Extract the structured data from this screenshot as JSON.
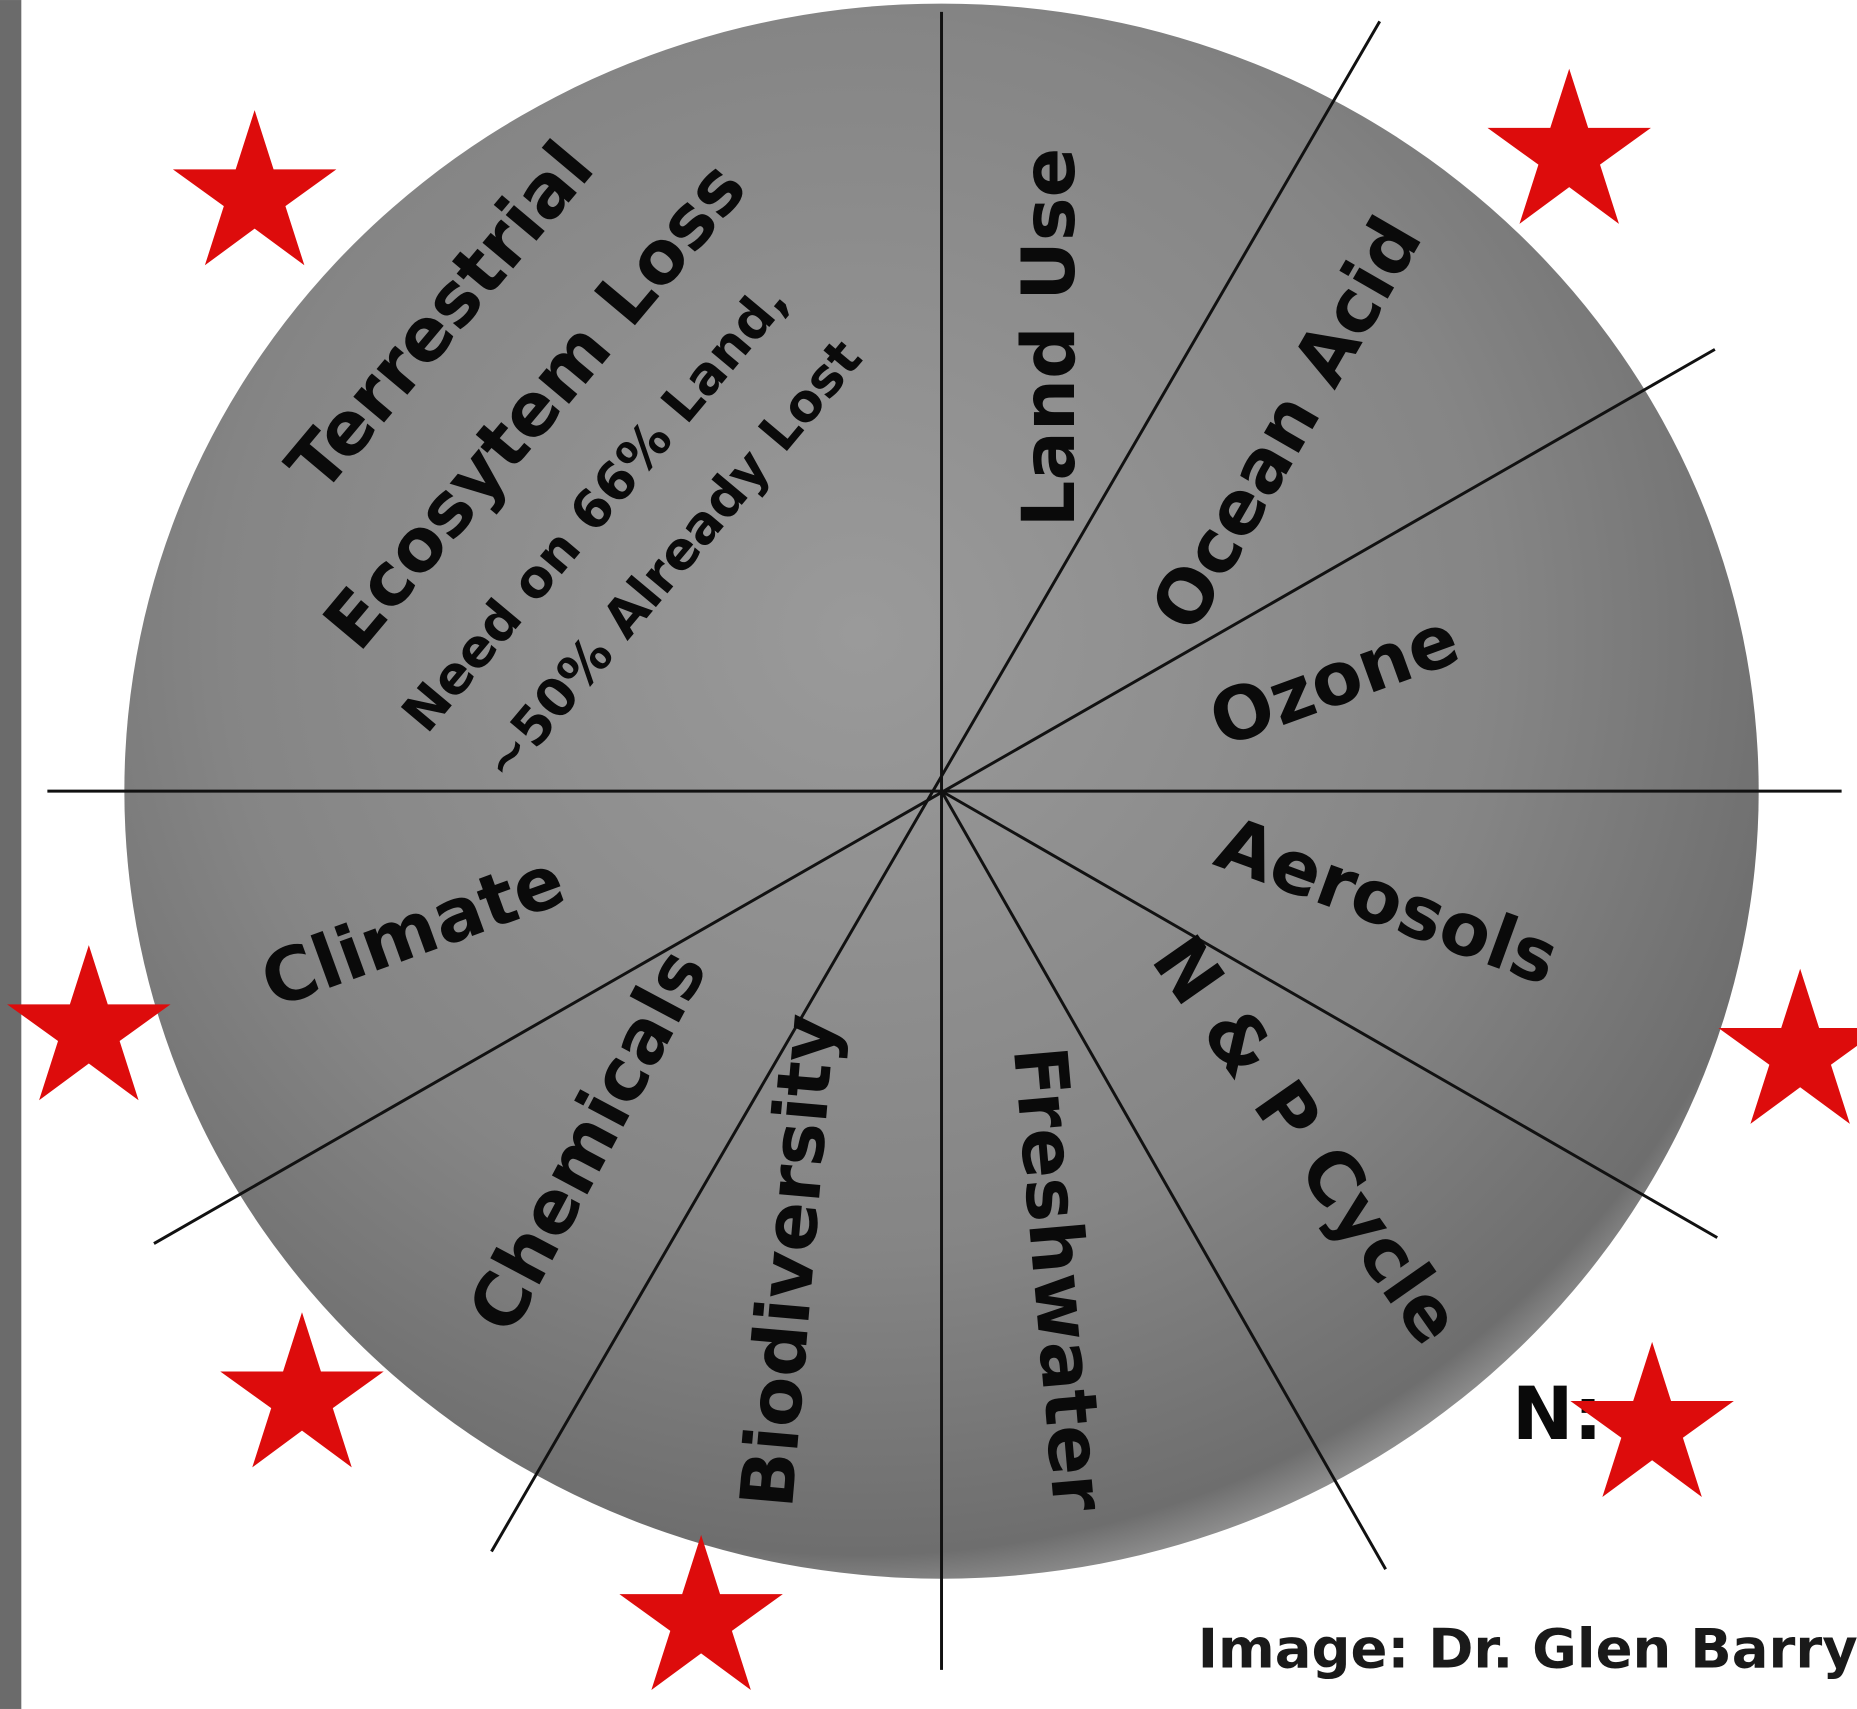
{
  "diagram": {
    "segments": [
      {
        "lines": [
          "Terrestrial",
          "Ecosytem Loss",
          "Need on 66% Land,",
          "~50% Already Lost"
        ]
      },
      {
        "lines": [
          "Land Use"
        ]
      },
      {
        "lines": [
          "Ocean Acid"
        ]
      },
      {
        "lines": [
          "Ozone"
        ]
      },
      {
        "lines": [
          "Aerosols"
        ]
      },
      {
        "lines": [
          "N & P Cycle"
        ]
      },
      {
        "lines": [
          "Freshwater"
        ]
      },
      {
        "lines": [
          "Biodiversity"
        ]
      },
      {
        "lines": [
          "Chemicals"
        ]
      },
      {
        "lines": [
          "Climate"
        ]
      }
    ],
    "partial_label": "N:",
    "credit": "Image: Dr. Glen Barry"
  }
}
